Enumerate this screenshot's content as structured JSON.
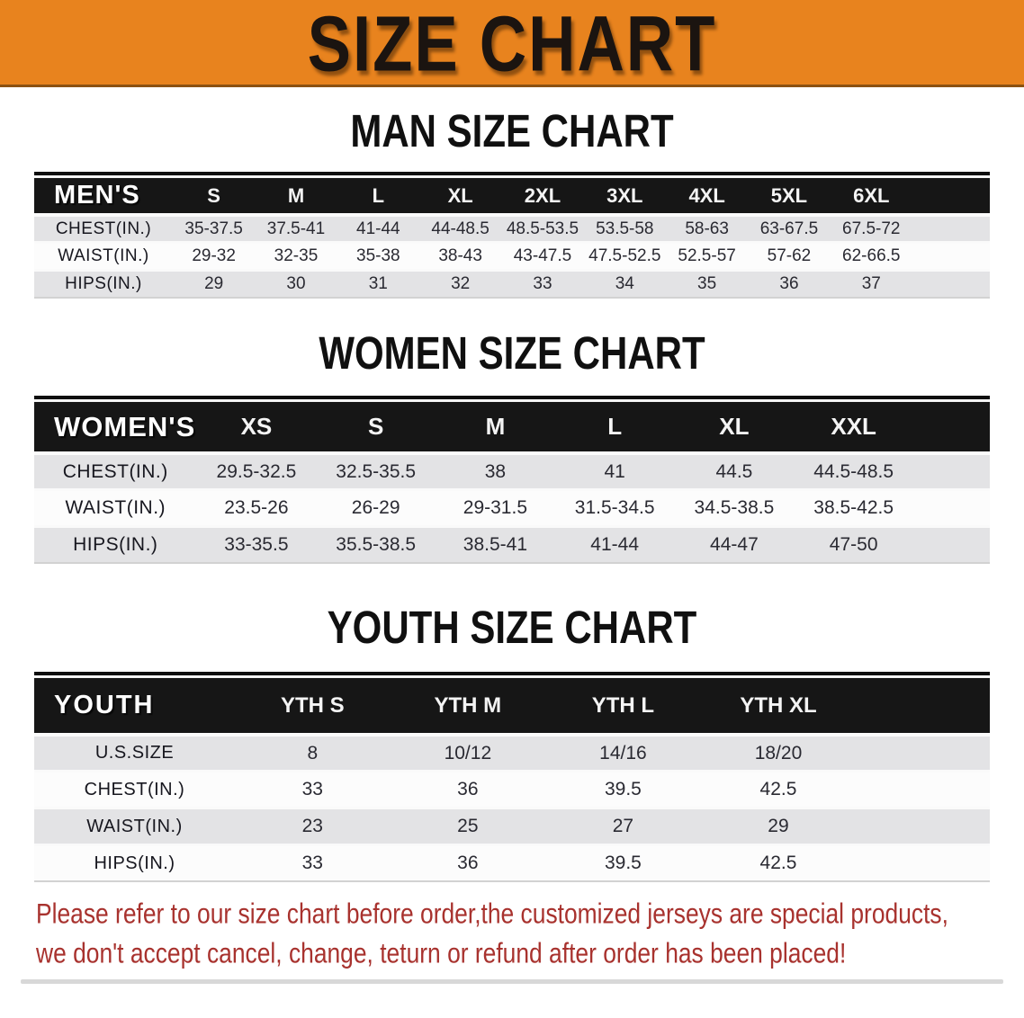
{
  "banner": {
    "title": "SIZE CHART"
  },
  "colors": {
    "banner_orange": "#E8831E",
    "header_black": "#161616",
    "row_shade": "#e3e3e5",
    "row_plain": "#fcfcfc",
    "cell_text": "#2a2a32",
    "footnote_red": "#a8322e"
  },
  "chart_data": [
    {
      "type": "table",
      "title": "MAN SIZE CHART",
      "header_label": "MEN'S",
      "columns": [
        "S",
        "M",
        "L",
        "XL",
        "2XL",
        "3XL",
        "4XL",
        "5XL",
        "6XL"
      ],
      "rows": [
        {
          "label": "CHEST(IN.)",
          "values": [
            "35-37.5",
            "37.5-41",
            "41-44",
            "44-48.5",
            "48.5-53.5",
            "53.5-58",
            "58-63",
            "63-67.5",
            "67.5-72"
          ]
        },
        {
          "label": "WAIST(IN.)",
          "values": [
            "29-32",
            "32-35",
            "35-38",
            "38-43",
            "43-47.5",
            "47.5-52.5",
            "52.5-57",
            "57-62",
            "62-66.5"
          ]
        },
        {
          "label": "HIPS(IN.)",
          "values": [
            "29",
            "30",
            "31",
            "32",
            "33",
            "34",
            "35",
            "36",
            "37"
          ]
        }
      ]
    },
    {
      "type": "table",
      "title": "WOMEN SIZE CHART",
      "header_label": "WOMEN'S",
      "columns": [
        "XS",
        "S",
        "M",
        "L",
        "XL",
        "XXL"
      ],
      "rows": [
        {
          "label": "CHEST(IN.)",
          "values": [
            "29.5-32.5",
            "32.5-35.5",
            "38",
            "41",
            "44.5",
            "44.5-48.5"
          ]
        },
        {
          "label": "WAIST(IN.)",
          "values": [
            "23.5-26",
            "26-29",
            "29-31.5",
            "31.5-34.5",
            "34.5-38.5",
            "38.5-42.5"
          ]
        },
        {
          "label": "HIPS(IN.)",
          "values": [
            "33-35.5",
            "35.5-38.5",
            "38.5-41",
            "41-44",
            "44-47",
            "47-50"
          ]
        }
      ]
    },
    {
      "type": "table",
      "title": "YOUTH SIZE CHART",
      "header_label": "YOUTH",
      "columns": [
        "YTH S",
        "YTH M",
        "YTH L",
        "YTH XL"
      ],
      "rows": [
        {
          "label": "U.S.SIZE",
          "values": [
            "8",
            "10/12",
            "14/16",
            "18/20"
          ]
        },
        {
          "label": "CHEST(IN.)",
          "values": [
            "33",
            "36",
            "39.5",
            "42.5"
          ]
        },
        {
          "label": "WAIST(IN.)",
          "values": [
            "23",
            "25",
            "27",
            "29"
          ]
        },
        {
          "label": "HIPS(IN.)",
          "values": [
            "33",
            "36",
            "39.5",
            "42.5"
          ]
        }
      ]
    }
  ],
  "footnote": {
    "line1": "Please refer to our size chart before order,the customized jerseys are special products,",
    "line2": "we don't accept cancel, change, teturn or refund after order has been placed!"
  }
}
